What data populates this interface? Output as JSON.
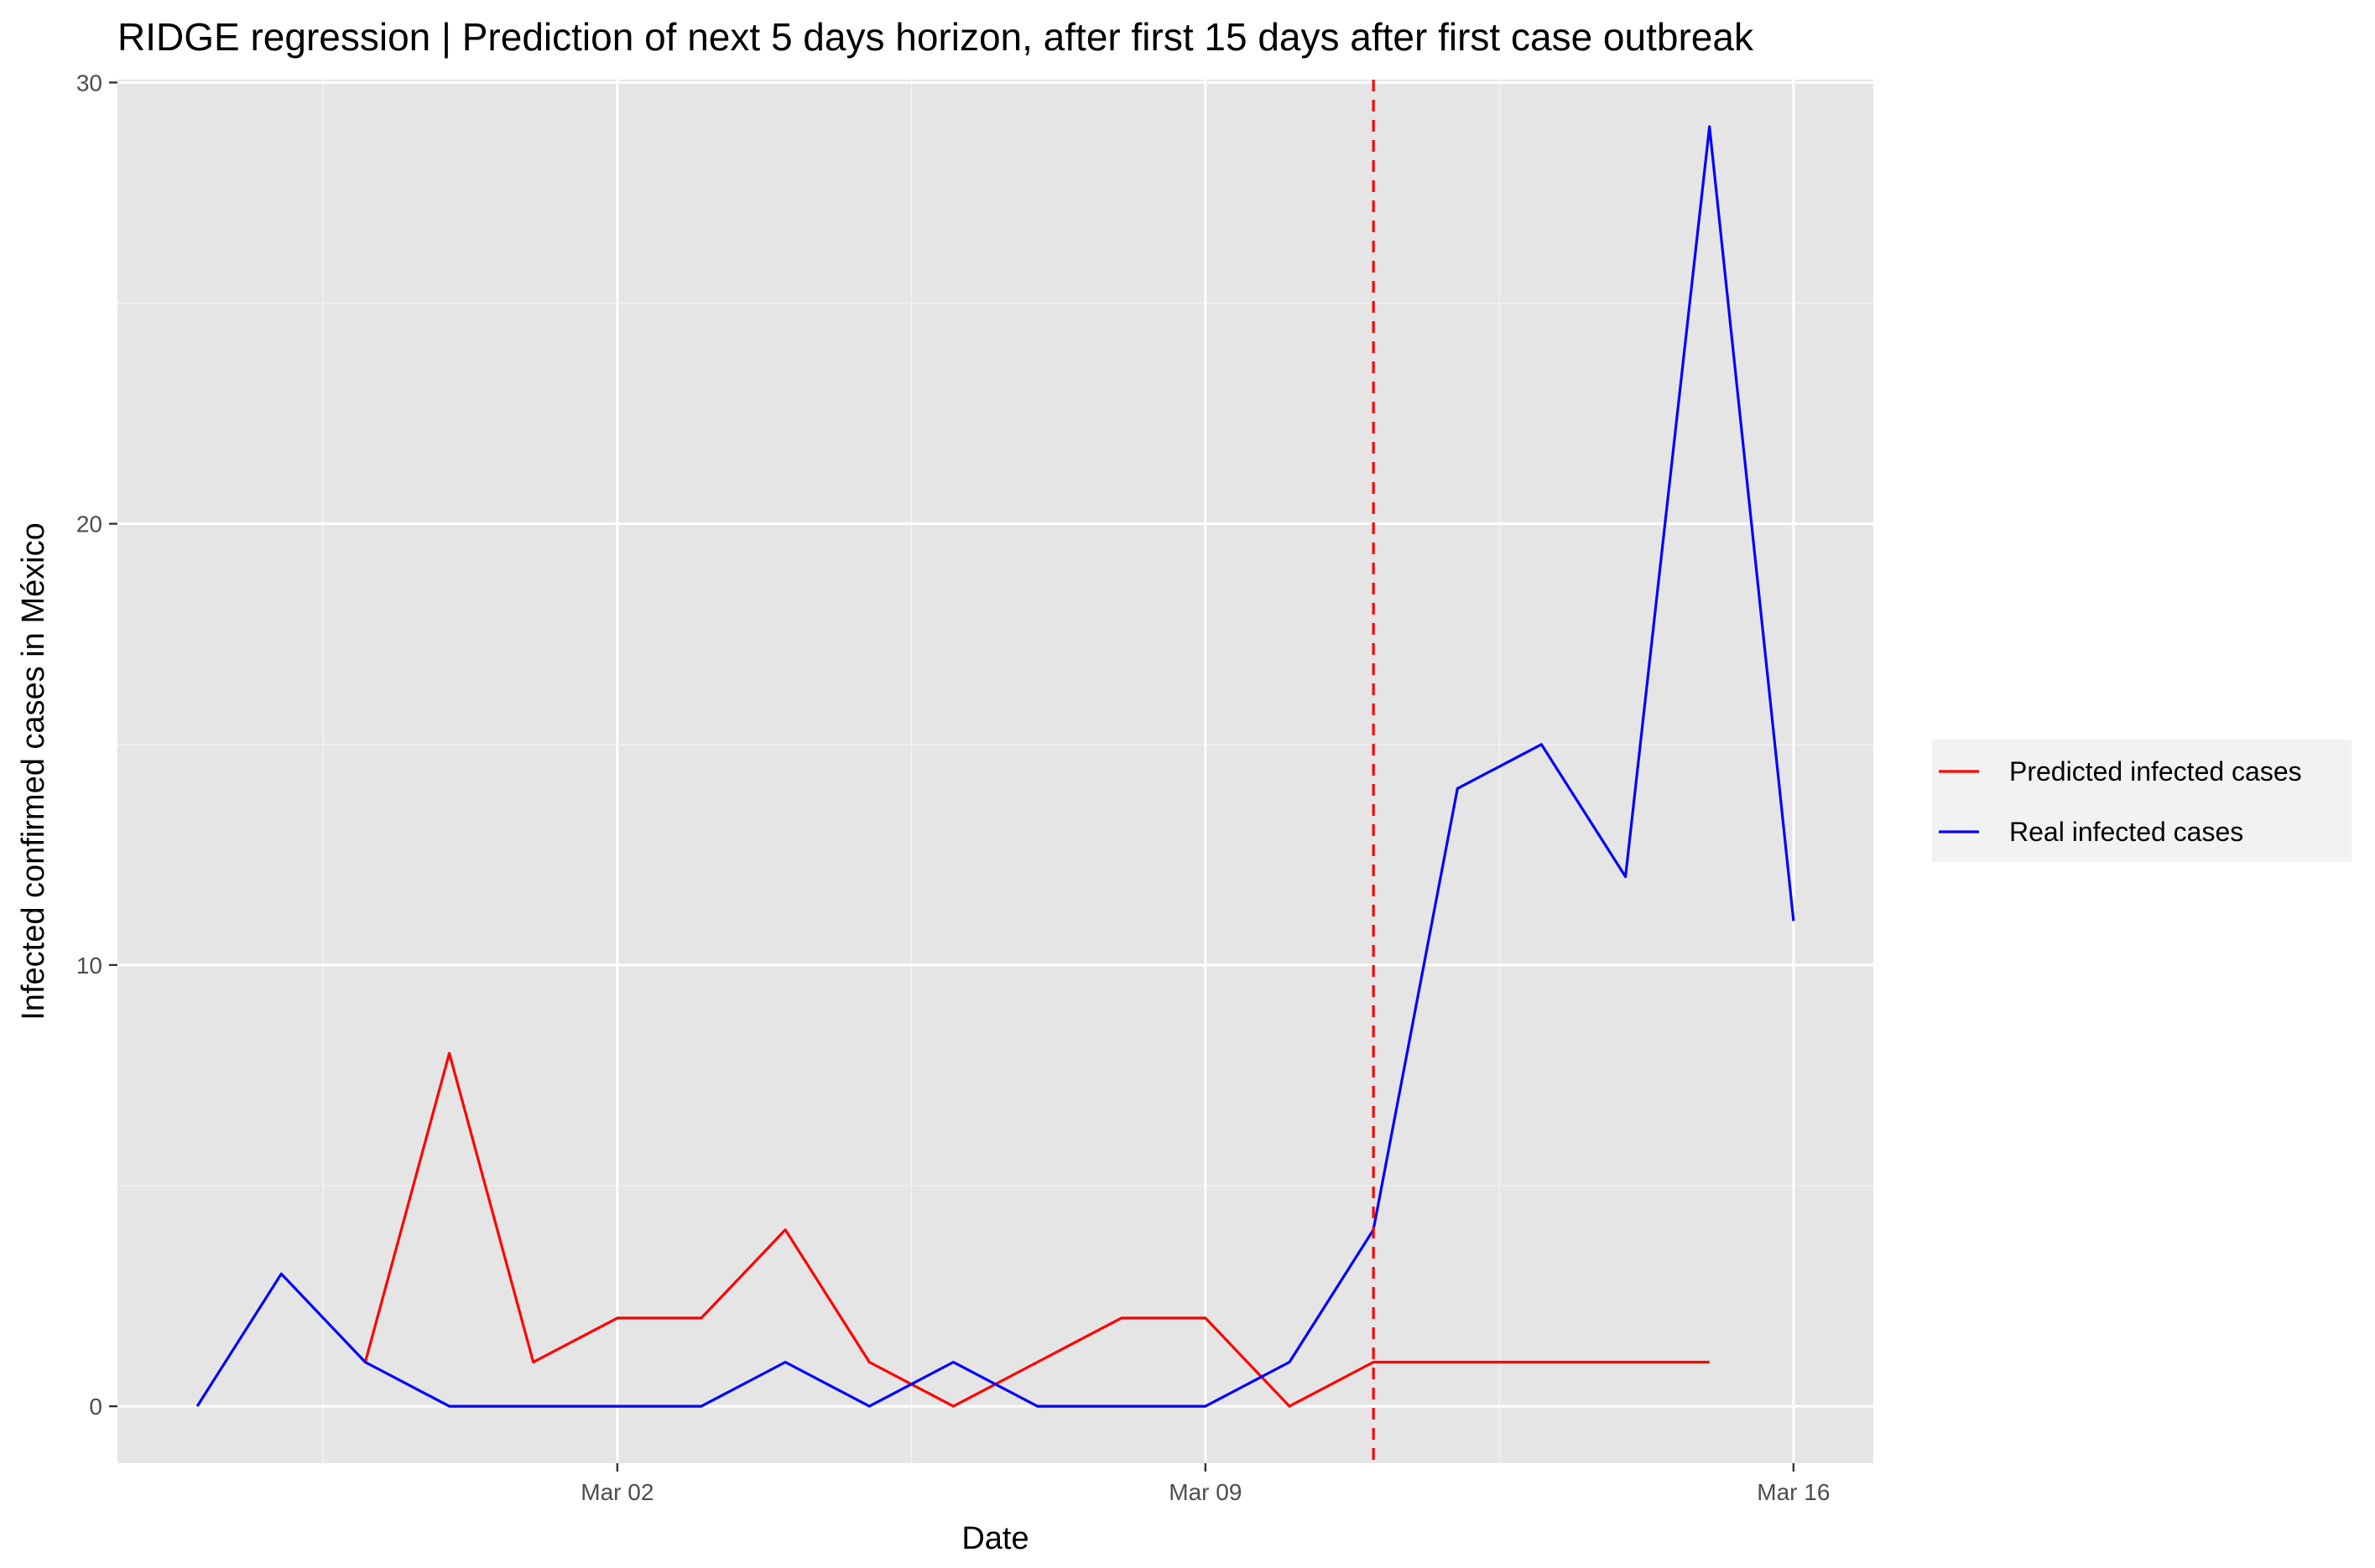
{
  "chart_data": {
    "type": "line",
    "title": "RIDGE regression | Prediction of next 5 days horizon, after first 15 days after first case outbreak",
    "xlabel": "Date",
    "ylabel": "Infected confirmed cases in México",
    "x_ticks": [
      {
        "date": "2020-03-02",
        "label": "Mar 02"
      },
      {
        "date": "2020-03-09",
        "label": "Mar 09"
      },
      {
        "date": "2020-03-16",
        "label": "Mar 16"
      }
    ],
    "y_ticks": [
      0,
      10,
      20,
      30
    ],
    "xlim": [
      "2020-02-26",
      "2020-03-16"
    ],
    "ylim": [
      0,
      30
    ],
    "grid": true,
    "legend_position": "right",
    "vline": {
      "date": "2020-03-11",
      "color": "#ff0000",
      "style": "dashed"
    },
    "series": [
      {
        "name": "Predicted infected cases",
        "color": "#ff0000",
        "x": [
          "2020-02-28",
          "2020-02-29",
          "2020-03-01",
          "2020-03-02",
          "2020-03-03",
          "2020-03-04",
          "2020-03-05",
          "2020-03-06",
          "2020-03-07",
          "2020-03-08",
          "2020-03-09",
          "2020-03-10",
          "2020-03-11",
          "2020-03-12",
          "2020-03-13",
          "2020-03-14",
          "2020-03-15"
        ],
        "values": [
          1,
          8,
          1,
          2,
          2,
          4,
          1,
          0,
          1,
          2,
          2,
          0,
          1,
          1,
          1,
          1,
          1
        ]
      },
      {
        "name": "Real infected cases",
        "color": "#0000ff",
        "x": [
          "2020-02-26",
          "2020-02-27",
          "2020-02-28",
          "2020-02-29",
          "2020-03-01",
          "2020-03-02",
          "2020-03-03",
          "2020-03-04",
          "2020-03-05",
          "2020-03-06",
          "2020-03-07",
          "2020-03-08",
          "2020-03-09",
          "2020-03-10",
          "2020-03-11",
          "2020-03-12",
          "2020-03-13",
          "2020-03-14",
          "2020-03-15",
          "2020-03-16"
        ],
        "values": [
          0,
          3,
          1,
          0,
          0,
          0,
          0,
          1,
          0,
          1,
          0,
          0,
          0,
          1,
          4,
          14,
          15,
          12,
          29,
          11
        ]
      }
    ]
  }
}
